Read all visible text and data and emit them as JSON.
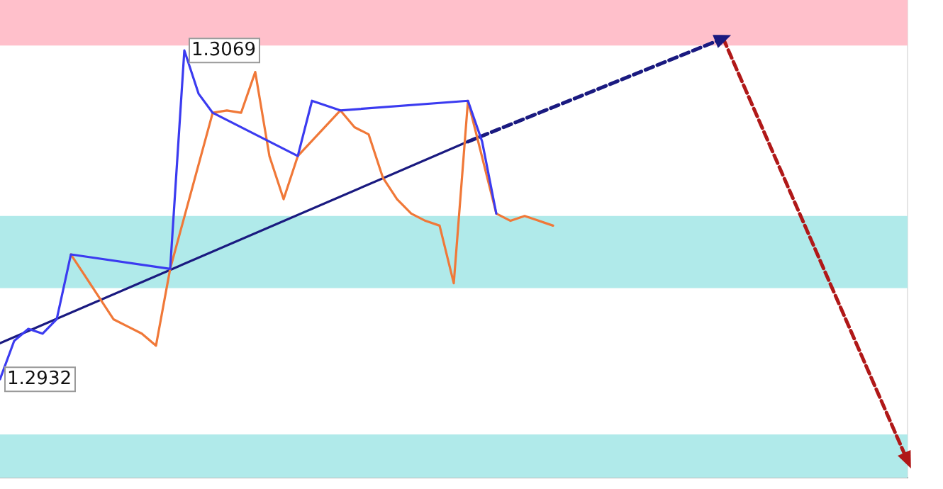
{
  "chart_data": {
    "type": "line",
    "categories": [
      null,
      null,
      null,
      null,
      null,
      null,
      null,
      null,
      null,
      null,
      null,
      null,
      null,
      null,
      null,
      null,
      null,
      null,
      null,
      null,
      null,
      null,
      null,
      null,
      null,
      null,
      null,
      null,
      null,
      null,
      null,
      null,
      null,
      null,
      null,
      null,
      null,
      null,
      null,
      null,
      null,
      null,
      null,
      null,
      null,
      null,
      null,
      null,
      null,
      null,
      null,
      null,
      null,
      null,
      null,
      null,
      null,
      null,
      null,
      null,
      null,
      null,
      null,
      null,
      null
    ],
    "series": [
      {
        "color": "#3b3bf0",
        "values": [
          1.2932,
          1.2948,
          1.2953,
          1.2951,
          1.2957,
          1.2984,
          null,
          null,
          null,
          null,
          null,
          null,
          1.2978,
          1.3069,
          1.3051,
          1.3043,
          null,
          null,
          null,
          null,
          null,
          1.3025,
          1.3048,
          1.3046,
          1.3044,
          null,
          null,
          null,
          null,
          null,
          null,
          null,
          null,
          1.3048,
          1.3031,
          1.3001,
          null,
          null,
          null,
          null,
          null,
          null,
          null,
          null,
          null,
          null,
          null,
          null,
          null,
          null,
          null,
          null,
          null,
          null,
          null,
          null,
          null,
          null,
          null,
          null,
          null,
          null,
          null,
          null,
          null
        ],
        "value_labels": [
          "1.2932",
          null,
          null,
          null,
          null,
          null,
          null,
          null,
          null,
          null,
          null,
          null,
          null,
          "1.3069",
          null,
          null,
          null,
          null,
          null,
          null,
          null,
          null,
          null,
          null,
          null,
          null,
          null,
          null,
          null,
          null,
          null,
          null,
          null,
          null,
          null,
          null,
          null,
          null,
          null,
          null,
          null,
          null,
          null,
          null,
          null,
          null,
          null,
          null,
          null,
          null,
          null,
          null,
          null,
          null,
          null,
          null,
          null,
          null,
          null,
          null,
          null,
          null,
          null,
          null,
          null
        ]
      },
      {
        "color": "#f07838",
        "values": [
          null,
          null,
          null,
          null,
          null,
          1.2984,
          1.2975,
          1.2966,
          1.2957,
          1.2954,
          1.2951,
          1.2946,
          1.2978,
          null,
          null,
          1.3043,
          1.3044,
          1.3043,
          1.306,
          1.3025,
          1.3007,
          1.3025,
          null,
          null,
          1.3044,
          1.3037,
          1.3034,
          1.3016,
          1.3007,
          1.3001,
          1.2998,
          1.2996,
          1.2972,
          1.3048,
          null,
          1.3001,
          1.2998,
          1.3,
          1.2998,
          1.2996,
          null,
          null,
          null,
          null,
          null,
          null,
          null,
          null,
          null,
          null,
          null,
          null,
          null,
          null,
          null,
          null,
          null,
          null,
          null,
          null,
          null,
          null,
          null,
          null,
          null
        ]
      },
      {
        "color": "#1a1a80",
        "line_style": "solid",
        "values": [
          1.2947,
          null,
          null,
          null,
          null,
          null,
          null,
          null,
          null,
          null,
          null,
          null,
          null,
          null,
          null,
          null,
          null,
          null,
          null,
          null,
          null,
          null,
          null,
          null,
          null,
          null,
          null,
          null,
          null,
          null,
          null,
          null,
          null,
          1.3031,
          null,
          null,
          null,
          null,
          null,
          null,
          null,
          null,
          null,
          null,
          null,
          null,
          null,
          null,
          null,
          null,
          null,
          null,
          null,
          null,
          null,
          null,
          null,
          null,
          null,
          null,
          null,
          null,
          null,
          null,
          null
        ]
      },
      {
        "color": "#1a1a80",
        "line_style": "dashed",
        "values": [
          null,
          null,
          null,
          null,
          null,
          null,
          null,
          null,
          null,
          null,
          null,
          null,
          null,
          null,
          null,
          null,
          null,
          null,
          null,
          null,
          null,
          null,
          null,
          null,
          null,
          null,
          null,
          null,
          null,
          null,
          null,
          null,
          null,
          1.3031,
          null,
          null,
          null,
          null,
          null,
          null,
          null,
          null,
          null,
          null,
          null,
          null,
          null,
          null,
          null,
          null,
          null,
          1.3074,
          null,
          null,
          null,
          null,
          null,
          null,
          null,
          null,
          null,
          null,
          null,
          null,
          null
        ]
      },
      {
        "color": "#b01818",
        "line_style": "dashed",
        "values": [
          null,
          null,
          null,
          null,
          null,
          null,
          null,
          null,
          null,
          null,
          null,
          null,
          null,
          null,
          null,
          null,
          null,
          null,
          null,
          null,
          null,
          null,
          null,
          null,
          null,
          null,
          null,
          null,
          null,
          null,
          null,
          null,
          null,
          null,
          null,
          null,
          null,
          null,
          null,
          null,
          null,
          null,
          null,
          null,
          null,
          null,
          null,
          null,
          null,
          null,
          null,
          1.3074,
          null,
          null,
          null,
          null,
          null,
          null,
          null,
          null,
          null,
          null,
          null,
          null,
          1.2898
        ]
      }
    ],
    "ylim": [
      1.2891,
      1.309
    ],
    "bands": [
      {
        "axis": "y",
        "from": 1.3071,
        "to": 1.309,
        "color": "#ffc0cb"
      },
      {
        "axis": "y",
        "from": 1.297,
        "to": 1.3,
        "color": "#b0eaea"
      },
      {
        "axis": "y",
        "from": 1.2891,
        "to": 1.2909,
        "color": "#b0eaea"
      }
    ],
    "grid": false,
    "legend": false
  }
}
